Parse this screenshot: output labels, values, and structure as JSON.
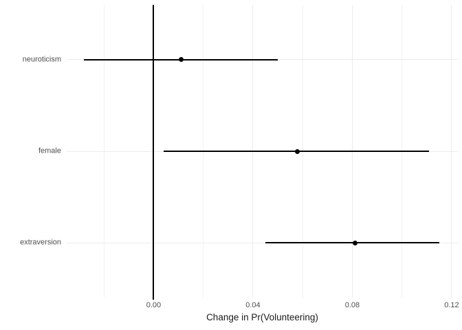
{
  "chart_data": {
    "type": "scatter",
    "subtype": "dot-whisker-coefficient-plot",
    "title": "",
    "xlabel": "Change in Pr(Volunteering)",
    "ylabel": "",
    "categories": [
      "neuroticism",
      "female",
      "extraversion"
    ],
    "points": [
      {
        "label": "neuroticism",
        "estimate": 0.011,
        "ci_low": -0.028,
        "ci_high": 0.05
      },
      {
        "label": "female",
        "estimate": 0.058,
        "ci_low": 0.004,
        "ci_high": 0.111
      },
      {
        "label": "extraversion",
        "estimate": 0.081,
        "ci_low": 0.045,
        "ci_high": 0.115
      }
    ],
    "xlim": [
      -0.035,
      0.1225
    ],
    "x_major_ticks": [
      0,
      0.04,
      0.08,
      0.12
    ],
    "x_tick_labels": [
      "0.00",
      "0.04",
      "0.08",
      "0.12"
    ],
    "x_minor_gridlines": [
      -0.02,
      0.02,
      0.06,
      0.1
    ],
    "reference_line_x": 0,
    "grid": "major-and-minor",
    "legend": "none",
    "colors": {
      "background": "#ffffff",
      "grid_major": "#ebebeb",
      "grid_minor": "#f2f2f2",
      "data": "#000000",
      "reference_line": "#000000",
      "axis_text": "#4d4d4d",
      "axis_title": "#1a1a1a"
    }
  }
}
